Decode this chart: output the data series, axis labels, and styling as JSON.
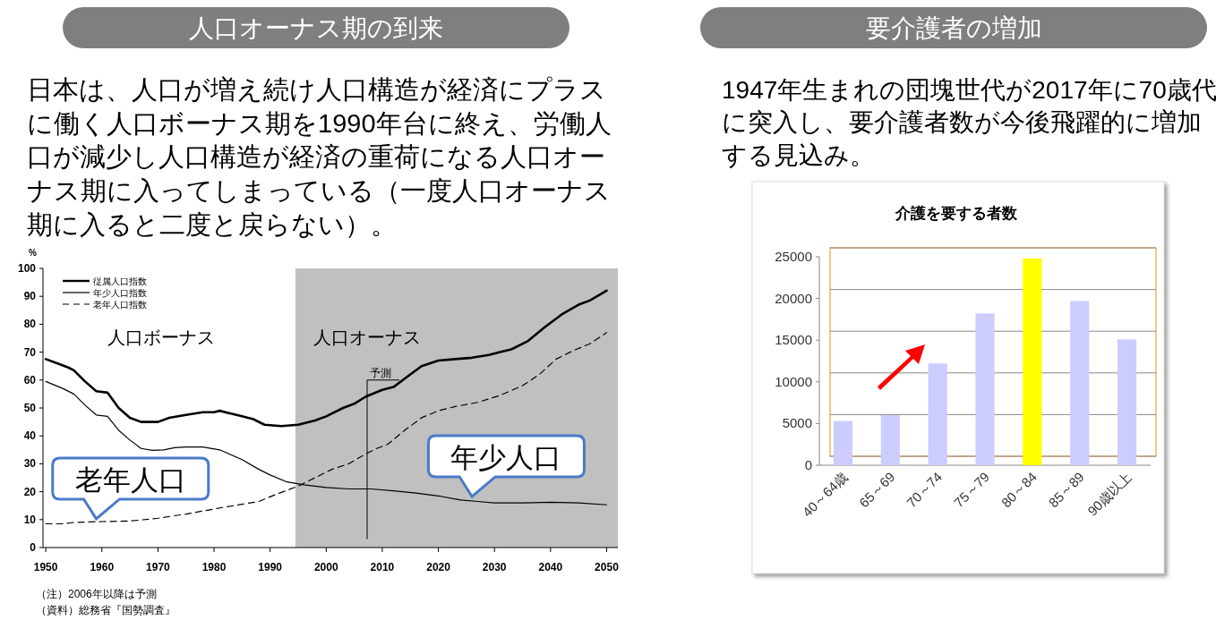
{
  "chart_data": [
    {
      "type": "line",
      "title": "人口オーナス期の到来",
      "subtitle": "日本は、人口が増え続け人口構造が経済にプラスに働く人口ボーナス期を1990年台に終え、労働人口が減少し人口構造が経済の重荷になる人口オーナス期に入ってしまっている（一度人口オーナス期に入ると二度と戻らない）。",
      "ylabel": "%",
      "xlim": [
        1949.5,
        2052
      ],
      "xticks": [
        1950,
        1960,
        1970,
        1980,
        1990,
        2000,
        2010,
        2020,
        2030,
        2040,
        2050
      ],
      "ylim": [
        0,
        100
      ],
      "yticks": [
        0,
        10,
        20,
        30,
        40,
        50,
        60,
        70,
        80,
        90,
        100
      ],
      "grid": false,
      "legend": "top left",
      "series": [
        {
          "name": "従属人口指数",
          "color": "#000000",
          "line_style": "solid",
          "x": [
            1950,
            1952,
            1954,
            1955,
            1957,
            1959,
            1961,
            1963,
            1965,
            1967,
            1970,
            1972,
            1975,
            1978,
            1980,
            1981,
            1983,
            1985,
            1987,
            1989,
            1992,
            1995,
            1998,
            2000,
            2003,
            2005,
            2007,
            2010,
            2012,
            2015,
            2017,
            2020,
            2023,
            2026,
            2029,
            2031,
            2033,
            2036,
            2039,
            2042,
            2045,
            2047,
            2050
          ],
          "values": [
            67.5,
            66,
            64.5,
            63.5,
            59.5,
            56,
            55.5,
            50,
            46.5,
            45,
            45,
            46.5,
            47.5,
            48.5,
            48.5,
            49,
            48,
            47,
            46,
            44,
            43.5,
            44,
            45.5,
            47,
            50,
            51.5,
            54,
            56.5,
            57.5,
            62,
            65,
            67,
            67.5,
            68,
            69,
            70,
            71,
            74,
            79,
            83.5,
            87,
            88.5,
            92
          ]
        },
        {
          "name": "年少人口指数",
          "color": "#000000",
          "line_style": "solid",
          "x": [
            1950,
            1953,
            1955,
            1957,
            1959,
            1961,
            1963,
            1965,
            1967,
            1969,
            1971,
            1973,
            1975,
            1978,
            1981,
            1985,
            1988,
            1990,
            1993,
            1996,
            2000,
            2004,
            2008,
            2012,
            2016,
            2020,
            2024,
            2027,
            2030,
            2035,
            2040,
            2045,
            2050
          ],
          "values": [
            59.5,
            57,
            55,
            51,
            47.5,
            47,
            42,
            38.5,
            35.5,
            34.8,
            35,
            35.8,
            36,
            36,
            35,
            31.5,
            28,
            26,
            23.5,
            22.5,
            21.5,
            21,
            21,
            20.3,
            19.5,
            18.5,
            17,
            16.5,
            16,
            16,
            16.2,
            16,
            15.3
          ]
        },
        {
          "name": "老年人口指数",
          "color": "#000000",
          "line_style": "dashed",
          "x": [
            1950,
            1953,
            1955,
            1960,
            1965,
            1970,
            1975,
            1980,
            1985,
            1988,
            1991,
            1995,
            1998,
            2001,
            2004,
            2007,
            2009,
            2011,
            2014,
            2017,
            2020,
            2023,
            2027,
            2031,
            2035,
            2038,
            2041,
            2044,
            2047,
            2050
          ],
          "values": [
            8.5,
            8.5,
            9,
            9.3,
            9.5,
            10.5,
            12,
            13.8,
            15.5,
            16.5,
            19,
            22,
            25,
            28,
            30,
            33.5,
            35.5,
            37,
            42,
            46.5,
            49,
            50.5,
            52,
            54.5,
            58,
            62,
            67.5,
            70.5,
            73,
            77
          ]
        }
      ],
      "bands": [
        {
          "axis": "x",
          "from": 1994.5,
          "to": 2052,
          "label": "人口オーナス",
          "color": "#c0c0c0"
        }
      ],
      "ref_lines": [
        {
          "axis": "x",
          "value": 2007.3,
          "label": "予測",
          "color": "#000000"
        }
      ],
      "annotations": [
        "人口ボーナス",
        {
          "text": "老年人口",
          "x": 1959,
          "y": 9
        },
        {
          "text": "年少人口",
          "x": 2026,
          "y": 17
        },
        "（注）2006年以降は予測",
        "（資料）総務省『国勢調査』"
      ]
    },
    {
      "type": "bar",
      "title": "要介護者の増加",
      "subtitle": "1947年生まれの団塊世代が2017年に70歳代に突入し、要介護者数が今後飛躍的に増加する見込み。",
      "annotations": [
        "介護を要する者数"
      ],
      "categories": [
        "40～64歳",
        "65～69",
        "70～74",
        "75～79",
        "80～84",
        "85～89",
        "90歳以上"
      ],
      "values": [
        5300,
        6000,
        12200,
        18200,
        24800,
        19700,
        15100
      ],
      "colors": [
        "#ccccff",
        "#ccccff",
        "#ccccff",
        "#ccccff",
        "#ffff00",
        "#ccccff",
        "#ccccff"
      ],
      "ylim": [
        0,
        25000
      ],
      "yticks": [
        0,
        5000,
        10000,
        15000,
        20000,
        25000
      ],
      "grid": true
    }
  ]
}
